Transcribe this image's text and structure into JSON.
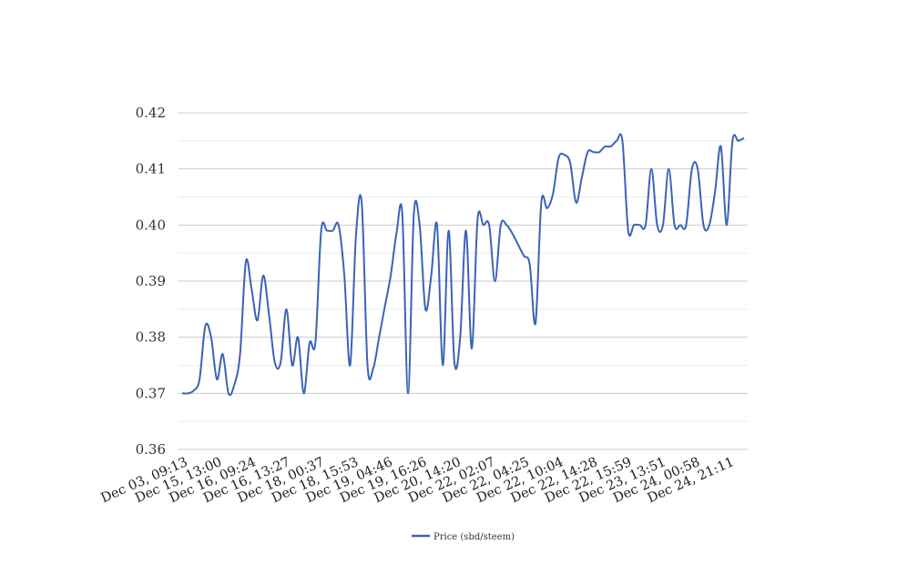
{
  "colors": {
    "background": "#ffffff",
    "line": "#3a63b8",
    "major_grid": "#cccccc",
    "minor_grid": "#ebebeb"
  },
  "chart_data": {
    "type": "line",
    "ylim": [
      0.36,
      0.42
    ],
    "yticks": [
      "0.42",
      "0.41",
      "0.40",
      "0.39",
      "0.38",
      "0.37",
      "0.36"
    ],
    "ytick_values": [
      0.42,
      0.41,
      0.4,
      0.39,
      0.38,
      0.37,
      0.36
    ],
    "xtick_labels": [
      "Dec 03, 09:13",
      "Dec 15, 13:00",
      "Dec 16, 09:24",
      "Dec 16, 13:27",
      "Dec 18, 00:37",
      "Dec 18, 15:53",
      "Dec 19, 04:46",
      "Dec 19, 16:26",
      "Dec 20, 14:20",
      "Dec 22, 02:07",
      "Dec 22, 04:25",
      "Dec 22, 10:04",
      "Dec 22, 14:28",
      "Dec 22, 15:59",
      "Dec 23, 13:51",
      "Dec 24, 00:58",
      "Dec 24, 21:11"
    ],
    "grid": true,
    "legend_position": "bottom-center",
    "series": [
      {
        "name": "Price (sbd/steem)",
        "values": [
          0.37,
          0.37,
          0.3705,
          0.3725,
          0.382,
          0.38,
          0.3725,
          0.377,
          0.37,
          0.3715,
          0.377,
          0.3935,
          0.3885,
          0.383,
          0.391,
          0.384,
          0.3755,
          0.3755,
          0.385,
          0.375,
          0.38,
          0.37,
          0.379,
          0.379,
          0.399,
          0.399,
          0.399,
          0.4,
          0.391,
          0.375,
          0.398,
          0.404,
          0.375,
          0.3745,
          0.38,
          0.3855,
          0.391,
          0.3985,
          0.402,
          0.37,
          0.402,
          0.4,
          0.385,
          0.391,
          0.4,
          0.375,
          0.399,
          0.3755,
          0.38,
          0.399,
          0.378,
          0.401,
          0.4,
          0.4,
          0.39,
          0.4,
          0.4,
          0.3985,
          0.3965,
          0.3945,
          0.393,
          0.3825,
          0.404,
          0.403,
          0.4055,
          0.412,
          0.4125,
          0.411,
          0.404,
          0.4085,
          0.413,
          0.413,
          0.413,
          0.414,
          0.414,
          0.415,
          0.415,
          0.399,
          0.4,
          0.4,
          0.4,
          0.41,
          0.4,
          0.4,
          0.41,
          0.4,
          0.4,
          0.4,
          0.41,
          0.41,
          0.4,
          0.4,
          0.406,
          0.414,
          0.4,
          0.415,
          0.415,
          0.4155
        ]
      }
    ]
  }
}
